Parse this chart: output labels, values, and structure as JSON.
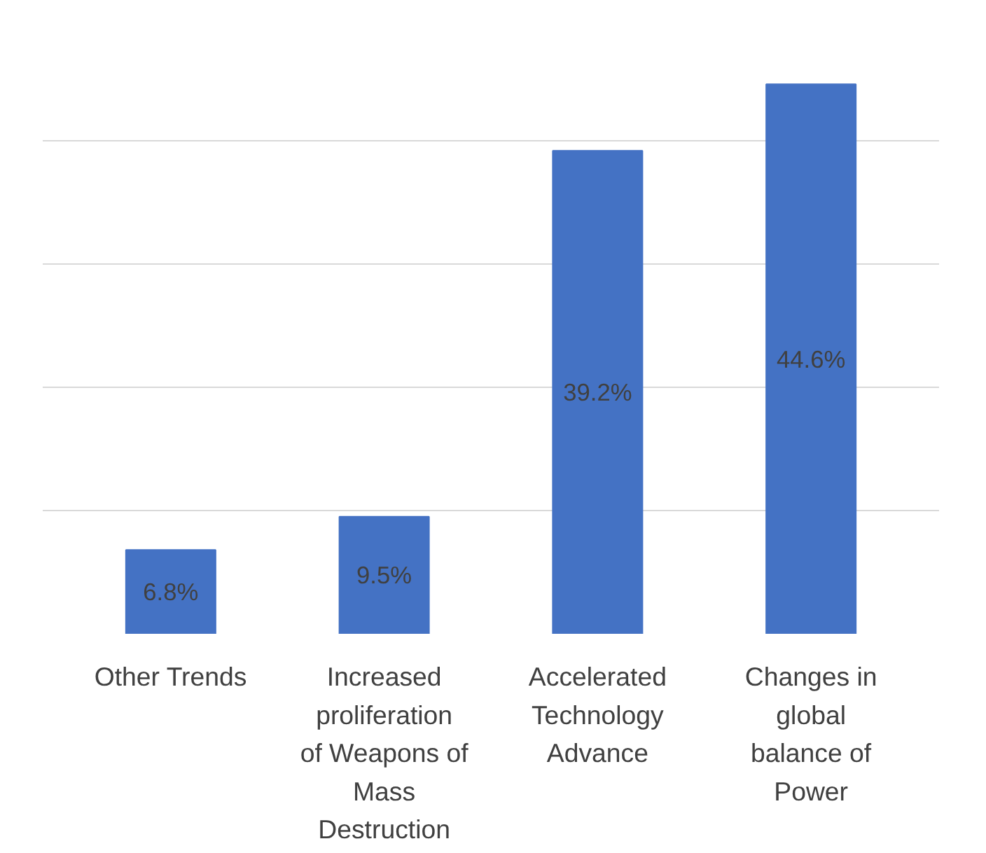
{
  "chart_data": {
    "type": "bar",
    "categories": [
      "Other Trends",
      "Increased proliferation of Weapons of Mass Destruction",
      "Accelerated Technology Advance",
      "Changes in global balance of Power"
    ],
    "values": [
      6.8,
      9.5,
      39.2,
      44.6
    ],
    "value_labels": [
      "6.8%",
      "9.5%",
      "39.2%",
      "44.6%"
    ],
    "color": "#4472c4",
    "grid": "y",
    "tick_labels": "x"
  }
}
